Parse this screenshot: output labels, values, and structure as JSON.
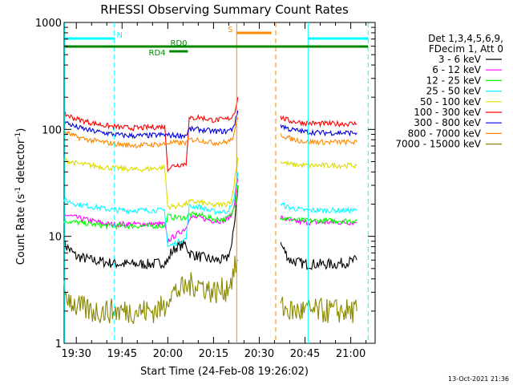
{
  "chart_data": {
    "type": "line",
    "title": "RHESSI Observing Summary Count Rates",
    "xlabel": "Start Time (24-Feb-08 19:26:02)",
    "ylabel_main": "Count Rate (s",
    "ylabel_sup1": "-1",
    "ylabel_mid": " detector",
    "ylabel_sup2": "-1",
    "ylabel_end": ")",
    "timestamp": "13-Oct-2021 21:36",
    "x_ticks": [
      {
        "t": 1170,
        "label": "19:30"
      },
      {
        "t": 1185,
        "label": "19:45"
      },
      {
        "t": 1200,
        "label": "20:00"
      },
      {
        "t": 1215,
        "label": "20:15"
      },
      {
        "t": 1230,
        "label": "20:30"
      },
      {
        "t": 1245,
        "label": "20:45"
      },
      {
        "t": 1260,
        "label": "21:00"
      }
    ],
    "xlim_minutes": [
      1166,
      1268
    ],
    "y_scale": "log",
    "ylim": [
      1,
      1000
    ],
    "y_tick_labels": [
      {
        "v": 1,
        "label": "1"
      },
      {
        "v": 10,
        "label": "10"
      },
      {
        "v": 100,
        "label": "100"
      },
      {
        "v": 1000,
        "label": "1000"
      }
    ],
    "legend_header": [
      "Det 1,3,4,5,6,9,",
      "FDecim 1, Att 0"
    ],
    "series": [
      {
        "name": "3 - 6 keV",
        "color": "#000000",
        "points": [
          [
            1166,
            8.5
          ],
          [
            1170,
            6.5
          ],
          [
            1175,
            6
          ],
          [
            1180,
            5.7
          ],
          [
            1185,
            5.5
          ],
          [
            1190,
            5.5
          ],
          [
            1195,
            5.5
          ],
          [
            1200,
            5.8
          ],
          [
            1201,
            7
          ],
          [
            1203,
            8
          ],
          [
            1206,
            8.5
          ],
          [
            1207,
            7
          ],
          [
            1210,
            6.5
          ],
          [
            1215,
            6
          ],
          [
            1219,
            6
          ],
          [
            1221,
            8
          ],
          [
            1222,
            15
          ],
          [
            1223,
            30
          ],
          [
            1237,
            8.5
          ],
          [
            1240,
            6
          ],
          [
            1245,
            5.5
          ],
          [
            1250,
            5.5
          ],
          [
            1255,
            5.5
          ],
          [
            1260,
            5.8
          ],
          [
            1262,
            6
          ]
        ]
      },
      {
        "name": "6 - 12 keV",
        "color": "#ff00ff",
        "points": [
          [
            1166,
            16
          ],
          [
            1170,
            15
          ],
          [
            1175,
            14
          ],
          [
            1180,
            13
          ],
          [
            1185,
            13
          ],
          [
            1190,
            13
          ],
          [
            1195,
            13
          ],
          [
            1199,
            13
          ],
          [
            1200,
            9
          ],
          [
            1202,
            10
          ],
          [
            1206,
            12
          ],
          [
            1207,
            15
          ],
          [
            1210,
            15
          ],
          [
            1215,
            14
          ],
          [
            1219,
            14
          ],
          [
            1221,
            16
          ],
          [
            1222,
            22
          ],
          [
            1223,
            35
          ],
          [
            1237,
            15
          ],
          [
            1240,
            14
          ],
          [
            1245,
            13.5
          ],
          [
            1250,
            13.5
          ],
          [
            1255,
            13.5
          ],
          [
            1260,
            13.5
          ],
          [
            1262,
            13.5
          ]
        ]
      },
      {
        "name": "12 - 25 keV",
        "color": "#00ff00",
        "points": [
          [
            1166,
            14
          ],
          [
            1170,
            13.5
          ],
          [
            1175,
            13
          ],
          [
            1180,
            12.5
          ],
          [
            1185,
            12.5
          ],
          [
            1190,
            12.5
          ],
          [
            1195,
            12.5
          ],
          [
            1199,
            12.5
          ],
          [
            1200,
            15.5
          ],
          [
            1202,
            15
          ],
          [
            1206,
            15
          ],
          [
            1207,
            16
          ],
          [
            1210,
            16
          ],
          [
            1215,
            14.5
          ],
          [
            1219,
            14.5
          ],
          [
            1221,
            16
          ],
          [
            1222,
            20
          ],
          [
            1223,
            30
          ],
          [
            1237,
            15
          ],
          [
            1240,
            14.5
          ],
          [
            1245,
            14
          ],
          [
            1250,
            14
          ],
          [
            1255,
            14
          ],
          [
            1260,
            14
          ],
          [
            1262,
            14
          ]
        ]
      },
      {
        "name": "25 - 50 keV",
        "color": "#00ffff",
        "points": [
          [
            1166,
            22
          ],
          [
            1170,
            20
          ],
          [
            1175,
            19
          ],
          [
            1180,
            18
          ],
          [
            1185,
            17.5
          ],
          [
            1190,
            17.5
          ],
          [
            1195,
            17.5
          ],
          [
            1199,
            17.5
          ],
          [
            1200,
            8
          ],
          [
            1202,
            8.5
          ],
          [
            1206,
            9.5
          ],
          [
            1207,
            19
          ],
          [
            1210,
            19
          ],
          [
            1215,
            17
          ],
          [
            1219,
            17
          ],
          [
            1221,
            19
          ],
          [
            1222,
            25
          ],
          [
            1223,
            40
          ],
          [
            1237,
            20
          ],
          [
            1240,
            18.5
          ],
          [
            1245,
            17.5
          ],
          [
            1250,
            17.5
          ],
          [
            1255,
            17.5
          ],
          [
            1260,
            17.5
          ],
          [
            1262,
            17.5
          ]
        ]
      },
      {
        "name": "50 - 100 keV",
        "color": "#dddd00",
        "points": [
          [
            1166,
            52
          ],
          [
            1170,
            48
          ],
          [
            1175,
            46
          ],
          [
            1180,
            44
          ],
          [
            1185,
            43
          ],
          [
            1190,
            42
          ],
          [
            1195,
            43
          ],
          [
            1199,
            44
          ],
          [
            1200,
            19
          ],
          [
            1202,
            19
          ],
          [
            1206,
            20
          ],
          [
            1207,
            21
          ],
          [
            1210,
            21
          ],
          [
            1215,
            19.5
          ],
          [
            1219,
            20
          ],
          [
            1221,
            22
          ],
          [
            1222,
            35
          ],
          [
            1223,
            55
          ],
          [
            1237,
            50
          ],
          [
            1240,
            47
          ],
          [
            1245,
            46
          ],
          [
            1250,
            46
          ],
          [
            1255,
            46
          ],
          [
            1260,
            46
          ],
          [
            1262,
            46
          ]
        ]
      },
      {
        "name": "100 - 300 keV",
        "color": "#ff0000",
        "points": [
          [
            1166,
            140
          ],
          [
            1170,
            125
          ],
          [
            1175,
            115
          ],
          [
            1180,
            108
          ],
          [
            1185,
            104
          ],
          [
            1190,
            103
          ],
          [
            1195,
            105
          ],
          [
            1199,
            106
          ],
          [
            1200,
            43
          ],
          [
            1202,
            46
          ],
          [
            1206,
            48
          ],
          [
            1207,
            125
          ],
          [
            1210,
            130
          ],
          [
            1215,
            122
          ],
          [
            1219,
            124
          ],
          [
            1221,
            130
          ],
          [
            1222,
            150
          ],
          [
            1223,
            200
          ],
          [
            1237,
            130
          ],
          [
            1240,
            120
          ],
          [
            1245,
            115
          ],
          [
            1250,
            113
          ],
          [
            1255,
            113
          ],
          [
            1260,
            113
          ],
          [
            1262,
            113
          ]
        ]
      },
      {
        "name": "300 - 800 keV",
        "color": "#0000dd",
        "points": [
          [
            1166,
            118
          ],
          [
            1170,
            105
          ],
          [
            1175,
            97
          ],
          [
            1180,
            92
          ],
          [
            1185,
            88
          ],
          [
            1190,
            87
          ],
          [
            1195,
            88
          ],
          [
            1199,
            89
          ],
          [
            1200,
            88
          ],
          [
            1202,
            88
          ],
          [
            1206,
            88
          ],
          [
            1207,
            100
          ],
          [
            1210,
            100
          ],
          [
            1215,
            96
          ],
          [
            1219,
            96
          ],
          [
            1221,
            100
          ],
          [
            1222,
            115
          ],
          [
            1223,
            150
          ],
          [
            1237,
            110
          ],
          [
            1240,
            100
          ],
          [
            1245,
            95
          ],
          [
            1250,
            93
          ],
          [
            1255,
            93
          ],
          [
            1260,
            93
          ],
          [
            1262,
            93
          ]
        ]
      },
      {
        "name": "800 - 7000 keV",
        "color": "#ff8800",
        "points": [
          [
            1166,
            95
          ],
          [
            1170,
            85
          ],
          [
            1175,
            79
          ],
          [
            1180,
            75
          ],
          [
            1185,
            72
          ],
          [
            1190,
            71
          ],
          [
            1195,
            72
          ],
          [
            1199,
            73
          ],
          [
            1200,
            75
          ],
          [
            1202,
            75
          ],
          [
            1206,
            75
          ],
          [
            1207,
            80
          ],
          [
            1210,
            80
          ],
          [
            1215,
            75
          ],
          [
            1219,
            76
          ],
          [
            1221,
            80
          ],
          [
            1222,
            95
          ],
          [
            1223,
            130
          ],
          [
            1237,
            90
          ],
          [
            1240,
            82
          ],
          [
            1245,
            77
          ],
          [
            1250,
            76
          ],
          [
            1255,
            76
          ],
          [
            1260,
            76
          ],
          [
            1262,
            76
          ]
        ]
      },
      {
        "name": "7000 - 15000 keV",
        "color": "#888800",
        "points": [
          [
            1166,
            3
          ],
          [
            1170,
            2.2
          ],
          [
            1175,
            2
          ],
          [
            1180,
            2
          ],
          [
            1185,
            2
          ],
          [
            1190,
            2
          ],
          [
            1195,
            2
          ],
          [
            1199,
            2.2
          ],
          [
            1200,
            2.8
          ],
          [
            1202,
            3
          ],
          [
            1206,
            3.3
          ],
          [
            1207,
            3.5
          ],
          [
            1210,
            3.6
          ],
          [
            1215,
            3
          ],
          [
            1219,
            3.2
          ],
          [
            1221,
            4
          ],
          [
            1222,
            5
          ],
          [
            1223,
            6
          ],
          [
            1237,
            2.2
          ],
          [
            1240,
            2
          ],
          [
            1245,
            2
          ],
          [
            1250,
            2
          ],
          [
            1255,
            2
          ],
          [
            1260,
            2
          ],
          [
            1262,
            2
          ]
        ]
      }
    ],
    "markers": [
      {
        "t": 1166.2,
        "color": "#00ffff",
        "style": "solid"
      },
      {
        "t": 1182.5,
        "color": "#00ffff",
        "style": "dashed"
      },
      {
        "t": 1222.6,
        "color": "#ff8800",
        "style": "solid"
      },
      {
        "t": 1235.4,
        "color": "#ff8800",
        "style": "dashed"
      },
      {
        "t": 1246.0,
        "color": "#00ffff",
        "style": "solid"
      },
      {
        "t": 1265.7,
        "color": "#00ffff",
        "style": "dashed"
      }
    ],
    "flag_bars": [
      {
        "label": "N",
        "color": "#00ffff",
        "segments": [
          [
            1166.2,
            1182.5
          ],
          [
            1246.0,
            1265.7
          ]
        ],
        "level": "top",
        "label_t": 1184.2
      },
      {
        "label": "S",
        "color": "#ff8800",
        "segments": [
          [
            1222.6,
            1234.0
          ]
        ],
        "level": "top-offset",
        "label_t": 1220.5
      },
      {
        "label": "RD0",
        "color": "#008800",
        "segments": [
          [
            1166.2,
            1265.7
          ]
        ],
        "level": "upper",
        "label_t": 1203.6
      },
      {
        "label": "RD4",
        "color": "#008800",
        "segments": [
          [
            1200.5,
            1206.6
          ]
        ],
        "level": "lower",
        "label_t": 1196.5
      }
    ]
  }
}
